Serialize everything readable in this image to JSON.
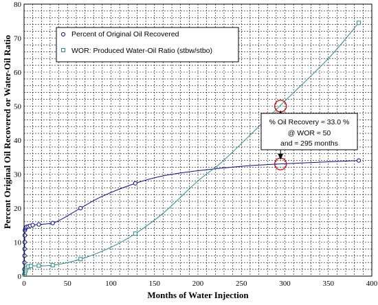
{
  "chart_data": {
    "type": "scatter",
    "xlabel": "Months of Water Injection",
    "ylabel": "Percent Original Oil Recovered  or  Water-Oil Ratio",
    "xlim": [
      0,
      400
    ],
    "ylim": [
      0,
      80
    ],
    "xticks": [
      "0",
      "50",
      "100",
      "150",
      "200",
      "250",
      "300",
      "350",
      "400"
    ],
    "yticks": [
      "0",
      "10",
      "20",
      "30",
      "40",
      "50",
      "60",
      "70",
      "80"
    ],
    "grid": true,
    "legend_position": "top-left",
    "series": [
      {
        "name": "Percent of Original Oil Recovered",
        "color": "#0a0aa0",
        "marker": "circle",
        "points": [
          [
            0.2,
            0.5
          ],
          [
            0.3,
            2
          ],
          [
            0.4,
            4
          ],
          [
            0.5,
            6
          ],
          [
            0.6,
            8
          ],
          [
            0.7,
            10
          ],
          [
            0.8,
            12
          ],
          [
            1,
            13.5
          ],
          [
            1.5,
            14
          ],
          [
            2,
            14.3
          ],
          [
            3,
            14.5
          ],
          [
            5,
            14.6
          ],
          [
            7,
            14.8
          ],
          [
            10,
            15
          ],
          [
            17,
            15.2
          ],
          [
            33,
            15.6
          ],
          [
            65,
            20
          ],
          [
            128,
            27.3
          ],
          [
            385,
            34
          ]
        ],
        "curve": [
          [
            0,
            0
          ],
          [
            0.5,
            6
          ],
          [
            1,
            13
          ],
          [
            2,
            14.3
          ],
          [
            5,
            14.6
          ],
          [
            10,
            15
          ],
          [
            17,
            15.2
          ],
          [
            33,
            15.6
          ],
          [
            45,
            17
          ],
          [
            65,
            20
          ],
          [
            90,
            23.5
          ],
          [
            128,
            27.3
          ],
          [
            160,
            29.5
          ],
          [
            200,
            31
          ],
          [
            250,
            32.3
          ],
          [
            295,
            33
          ],
          [
            340,
            33.5
          ],
          [
            385,
            34
          ]
        ]
      },
      {
        "name": "WOR: Produced Water-Oil Ratio (stbw/stbo)",
        "color": "#2a8a8a",
        "marker": "square",
        "points": [
          [
            0.5,
            0.5
          ],
          [
            1,
            1
          ],
          [
            1.5,
            1.5
          ],
          [
            2,
            2
          ],
          [
            3,
            2.5
          ],
          [
            5,
            2.8
          ],
          [
            8,
            3
          ],
          [
            17,
            3.1
          ],
          [
            33,
            3.2
          ],
          [
            65,
            5
          ],
          [
            128,
            12.5
          ],
          [
            385,
            74.5
          ]
        ],
        "curve": [
          [
            0,
            0
          ],
          [
            3,
            2.5
          ],
          [
            8,
            3
          ],
          [
            33,
            3.2
          ],
          [
            65,
            5
          ],
          [
            100,
            8.5
          ],
          [
            128,
            12.5
          ],
          [
            160,
            18.5
          ],
          [
            200,
            28
          ],
          [
            225,
            33
          ],
          [
            250,
            39
          ],
          [
            300,
            51.5
          ],
          [
            350,
            64
          ],
          [
            385,
            74.5
          ]
        ]
      }
    ],
    "annotation": {
      "line1": "% Oil Recovery ≈ 33.0 %",
      "line2": "@ WOR ≈ 50",
      "line3": "and ≈ 295 months",
      "x": 295,
      "recovery_y": 33,
      "wor_y": 50
    },
    "colors": {
      "annotation_circle": "#e00000",
      "frame": "#000000",
      "grid": "#000000"
    }
  }
}
